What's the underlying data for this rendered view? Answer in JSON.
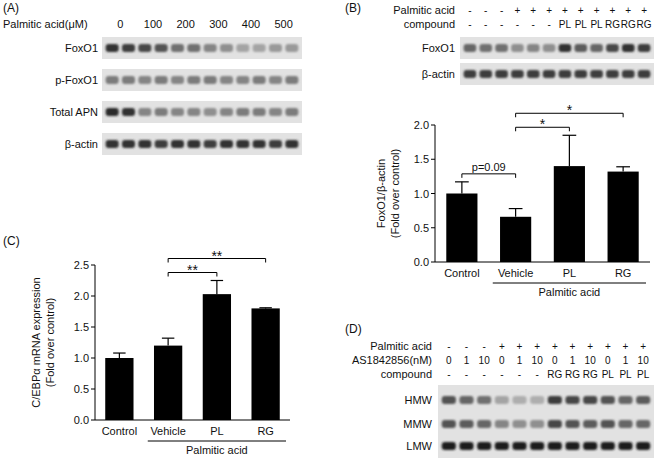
{
  "panel_labels": [
    "(A)",
    "(B)",
    "(C)",
    "(D)"
  ],
  "blots": [
    {
      "header": "Palmitic acid(μM)",
      "lane_groups": [
        0,
        100,
        200,
        300,
        400,
        500
      ],
      "rows": [
        {
          "label": "FoxO1",
          "bands": [
            0.85,
            0.8,
            0.75,
            0.7,
            0.55,
            0.55,
            0.45,
            0.4,
            0.3,
            0.3,
            0.35,
            0.35
          ]
        },
        {
          "label": "p-FoxO1",
          "bands": [
            0.5,
            0.5,
            0.45,
            0.5,
            0.45,
            0.5,
            0.5,
            0.45,
            0.45,
            0.5,
            0.45,
            0.5
          ]
        },
        {
          "label": "Total APN",
          "bands": [
            0.9,
            0.85,
            0.45,
            0.5,
            0.45,
            0.45,
            0.4,
            0.45,
            0.5,
            0.5,
            0.45,
            0.5
          ]
        },
        {
          "label": "β-actin",
          "bands": [
            0.85,
            0.85,
            0.85,
            0.8,
            0.85,
            0.85,
            0.8,
            0.85,
            0.85,
            0.85,
            0.8,
            0.85
          ]
        }
      ]
    },
    {
      "conditions": [
        {
          "label": "Palmitic acid",
          "lanes": [
            "-",
            "-",
            "-",
            "+",
            "+",
            "+",
            "+",
            "+",
            "+",
            "+",
            "+",
            "+"
          ]
        },
        {
          "label": "compound",
          "lanes": [
            "-",
            "-",
            "-",
            "-",
            "-",
            "-",
            "PL",
            "PL",
            "PL",
            "RG",
            "RG",
            "RG"
          ]
        }
      ],
      "rows": [
        {
          "label": "FoxO1",
          "bands": [
            0.6,
            0.55,
            0.55,
            0.4,
            0.45,
            0.4,
            0.85,
            0.65,
            0.6,
            0.75,
            0.85,
            0.8
          ]
        },
        {
          "label": "β-actin",
          "bands": [
            0.8,
            0.8,
            0.8,
            0.8,
            0.8,
            0.8,
            0.8,
            0.8,
            0.8,
            0.8,
            0.8,
            0.8
          ]
        }
      ]
    },
    {
      "conditions": [
        {
          "label": "Palmitic acid",
          "lanes": [
            "-",
            "-",
            "-",
            "+",
            "+",
            "+",
            "+",
            "+",
            "+",
            "+",
            "+",
            "+"
          ]
        },
        {
          "label": "AS1842856(nM)",
          "lanes": [
            0,
            1,
            10,
            0,
            1,
            10,
            0,
            1,
            10,
            0,
            1,
            10
          ]
        },
        {
          "label": "compound",
          "lanes": [
            "-",
            "-",
            "-",
            "-",
            "-",
            "-",
            "RG",
            "RG",
            "RG",
            "PL",
            "PL",
            "PL"
          ]
        }
      ],
      "rows": [
        {
          "label": "HMW",
          "bands": [
            0.7,
            0.6,
            0.55,
            0.3,
            0.25,
            0.25,
            0.8,
            0.75,
            0.75,
            0.7,
            0.6,
            0.65
          ]
        },
        {
          "label": "MMW",
          "bands": [
            0.7,
            0.65,
            0.6,
            0.45,
            0.4,
            0.4,
            0.75,
            0.7,
            0.65,
            0.7,
            0.6,
            0.6
          ]
        },
        {
          "label": "LMW",
          "bands": [
            0.95,
            0.95,
            0.95,
            0.95,
            0.95,
            0.95,
            0.95,
            0.95,
            0.95,
            0.95,
            0.95,
            0.95
          ]
        }
      ]
    }
  ],
  "chart_data": [
    {
      "type": "bar",
      "categories": [
        "Control",
        "Vehicle",
        "PL",
        "RG"
      ],
      "values": [
        1.0,
        0.66,
        1.4,
        1.32
      ],
      "errors": [
        0.17,
        0.12,
        0.45,
        0.07
      ],
      "color": "#000000",
      "y_label": "FoxO1/β-actin (Fold over control)",
      "ylim": [
        0,
        2
      ],
      "yticks": [
        {
          "value": 0,
          "label": "0.0"
        },
        0.5,
        {
          "value": 1,
          "label": "1.0"
        },
        1.5,
        {
          "value": 2,
          "label": "2.0"
        }
      ],
      "annotations": [
        {
          "type": "group",
          "text": "Palmitic acid",
          "from": 1,
          "to": 3
        },
        {
          "type": "bracket",
          "text": "p=0.09",
          "from": 0,
          "to": 1
        },
        {
          "type": "bracket",
          "text": "*",
          "from": 1,
          "to": 2
        },
        {
          "type": "bracket",
          "text": "*",
          "from": 1,
          "to": 3
        }
      ]
    },
    {
      "type": "bar",
      "categories": [
        "Control",
        "Vehicle",
        "PL",
        "RG"
      ],
      "values": [
        1.0,
        1.2,
        2.03,
        1.8
      ],
      "errors": [
        0.08,
        0.12,
        0.22,
        0.01
      ],
      "color": "#000000",
      "y_label": "C/EBPα mRNA expression (Fold over control)",
      "ylim": [
        0,
        2.5
      ],
      "yticks": [
        {
          "value": 0,
          "label": "0.0"
        },
        0.5,
        {
          "value": 1,
          "label": "1.0"
        },
        1.5,
        {
          "value": 2,
          "label": "2.0"
        },
        2.5
      ],
      "annotations": [
        {
          "type": "group",
          "text": "Palmitic acid",
          "from": 1,
          "to": 3
        },
        {
          "type": "bracket",
          "text": "**",
          "from": 1,
          "to": 2
        },
        {
          "type": "bracket",
          "text": "**",
          "from": 1,
          "to": 3
        }
      ]
    }
  ]
}
